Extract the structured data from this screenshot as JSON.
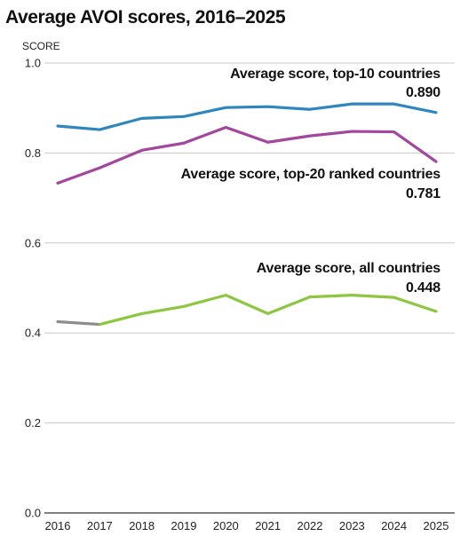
{
  "title": "Average AVOI scores, 2016–2025",
  "chart_data": {
    "type": "line",
    "ylabel": "SCORE",
    "xlabel": "",
    "x": [
      "2016",
      "2017",
      "2018",
      "2019",
      "2020",
      "2021",
      "2022",
      "2023",
      "2024",
      "2025"
    ],
    "ylim": [
      0.0,
      1.0
    ],
    "yticks": [
      "0.0",
      "0.2",
      "0.4",
      "0.6",
      "0.8",
      "1.0"
    ],
    "grid": "horizontal",
    "series": [
      {
        "name": "Average score, top-10 countries",
        "end_label": "0.890",
        "color": "#2e86c1",
        "values": [
          0.86,
          0.852,
          0.877,
          0.881,
          0.901,
          0.903,
          0.897,
          0.909,
          0.909,
          0.89
        ]
      },
      {
        "name": "Average score, top-20 ranked countries",
        "end_label": "0.781",
        "color": "#a3469e",
        "values": [
          0.733,
          0.767,
          0.806,
          0.822,
          0.857,
          0.824,
          0.838,
          0.848,
          0.847,
          0.781
        ]
      },
      {
        "name": "Average score, all countries",
        "end_label": "0.448",
        "color": "#8dc63f",
        "first_segment_color": "#8c8c8c",
        "values": [
          0.425,
          0.419,
          0.443,
          0.459,
          0.484,
          0.443,
          0.48,
          0.484,
          0.479,
          0.448
        ]
      }
    ]
  }
}
